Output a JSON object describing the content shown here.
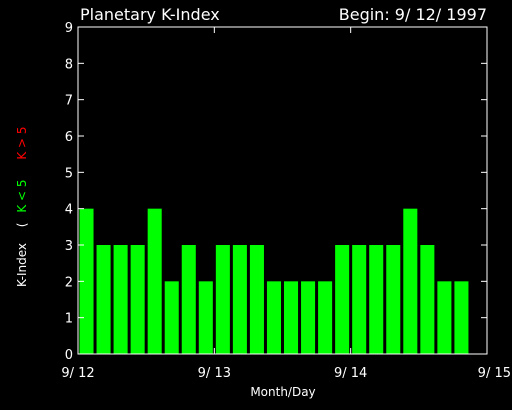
{
  "chart_data": {
    "type": "bar",
    "title": "Planetary K-Index",
    "begin_label": "Begin: 9/ 12/ 1997",
    "xlabel": "Month/Day",
    "ylabel": "K-Index",
    "legend": {
      "open": "(",
      "low_label": "K < 5",
      "high_label": "K > 5",
      "low_color": "#00ff00",
      "high_color": "#ff0000"
    },
    "ylim": [
      0,
      9
    ],
    "yticks": [
      "0",
      "1",
      "2",
      "3",
      "4",
      "5",
      "6",
      "7",
      "8",
      "9"
    ],
    "xlim": [
      0,
      24
    ],
    "xticks": [
      {
        "x": 0,
        "label": "9/ 12"
      },
      {
        "x": 8,
        "label": "9/ 13"
      },
      {
        "x": 16,
        "label": "9/ 14"
      },
      {
        "x": 24,
        "label": "9/ 15"
      }
    ],
    "values": [
      4,
      3,
      3,
      3,
      4,
      2,
      3,
      2,
      3,
      3,
      3,
      2,
      2,
      2,
      2,
      3,
      3,
      3,
      3,
      4,
      3,
      2,
      2
    ],
    "bar_color": "#00ff00",
    "axis_color": "#ffffff",
    "background": "#000000"
  }
}
